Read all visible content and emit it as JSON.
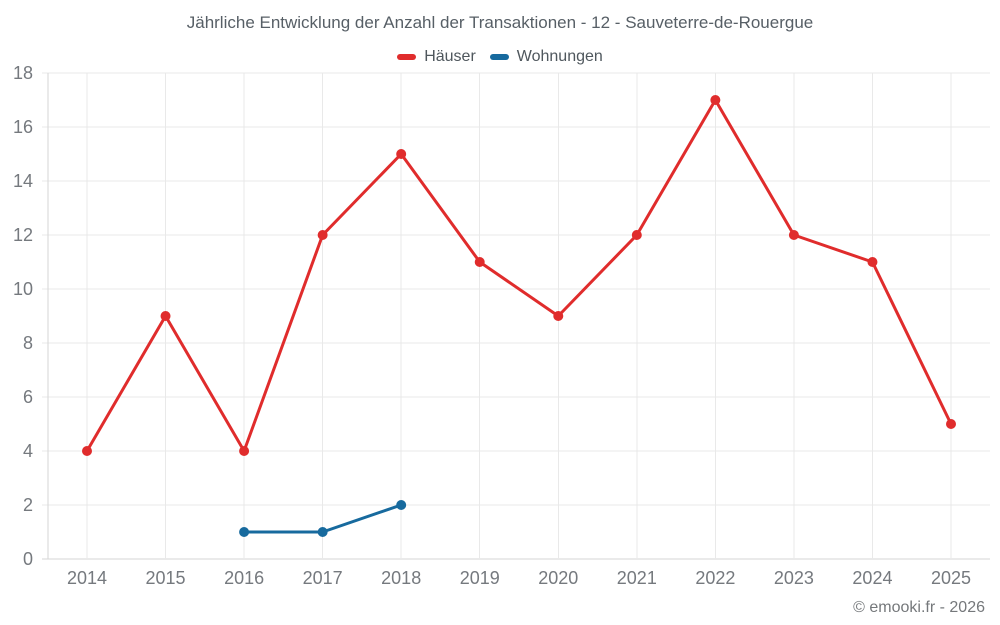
{
  "footer": "© emooki.fr - 2026",
  "colors": {
    "grid": "#e9e9e9",
    "axis": "#d6d6d6",
    "axis_label": "#75797e",
    "title_text": "#575f66",
    "legend_text": "#4f575d",
    "background": "#ffffff"
  },
  "chart_data": {
    "type": "line",
    "title": "Jährliche Entwicklung der Anzahl der Transaktionen - 12 - Sauveterre-de-Rouergue",
    "categories": [
      "2014",
      "2015",
      "2016",
      "2017",
      "2018",
      "2019",
      "2020",
      "2021",
      "2022",
      "2023",
      "2024",
      "2025"
    ],
    "series": [
      {
        "name": "Häuser",
        "color": "#e02c2c",
        "values": [
          4,
          9,
          4,
          12,
          15,
          11,
          9,
          12,
          17,
          12,
          11,
          5
        ]
      },
      {
        "name": "Wohnungen",
        "color": "#176a9e",
        "values": [
          null,
          null,
          1,
          1,
          2,
          null,
          null,
          null,
          null,
          null,
          null,
          null
        ]
      }
    ],
    "xlabel": "",
    "ylabel": "",
    "ylim": [
      0,
      18
    ],
    "ytick_step": 2,
    "grid": true,
    "legend_position": "top"
  }
}
